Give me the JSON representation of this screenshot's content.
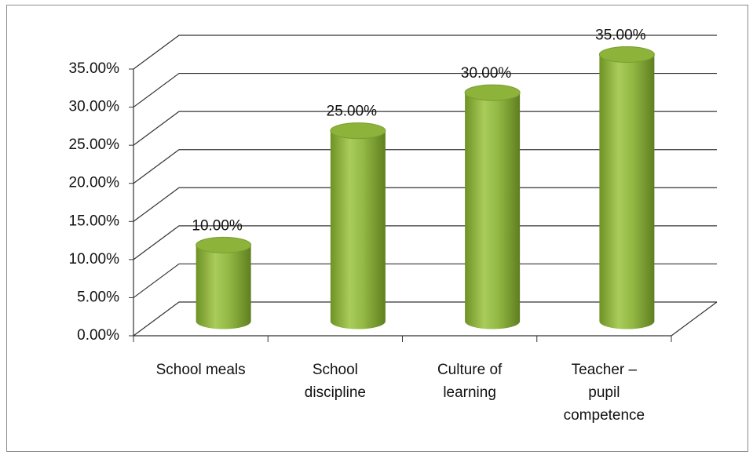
{
  "chart_data": {
    "type": "bar",
    "style": "3d-cylinder",
    "categories": [
      "School meals",
      "School discipline",
      "Culture of learning",
      "Teacher – pupil competence"
    ],
    "values": [
      10,
      25,
      30,
      35
    ],
    "value_labels": [
      "10.00%",
      "25.00%",
      "30.00%",
      "35.00%"
    ],
    "color": "#8db33a",
    "ylim": [
      0,
      35
    ],
    "yticks": [
      {
        "value": 0,
        "label": "0.00%"
      },
      {
        "value": 5,
        "label": "5.00%"
      },
      {
        "value": 10,
        "label": "10.00%"
      },
      {
        "value": 15,
        "label": "15.00%"
      },
      {
        "value": 20,
        "label": "20.00%"
      },
      {
        "value": 25,
        "label": "25.00%"
      },
      {
        "value": 30,
        "label": "30.00%"
      },
      {
        "value": 35,
        "label": "35.00%"
      }
    ],
    "grid": true
  }
}
